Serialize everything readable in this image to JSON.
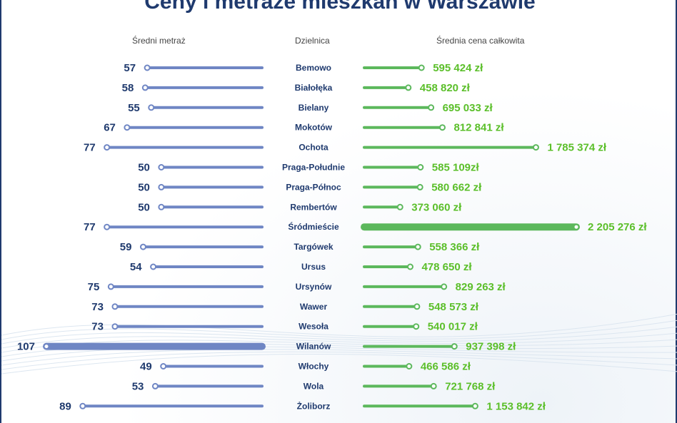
{
  "title": "Ceny i metraże mieszkań w Warszawie",
  "headers": {
    "left": "Średni metraż",
    "middle": "Dzielnica",
    "right": "Średnia cena całkowita"
  },
  "colors": {
    "title": "#1f3a6e",
    "left_bar": "#6f86c4",
    "right_bar": "#5cb85c",
    "right_text": "#5bbf2a"
  },
  "chart_data": {
    "type": "bar",
    "title": "Ceny i metraże mieszkań w Warszawie",
    "categories": [
      "Bemowo",
      "Białołęka",
      "Bielany",
      "Mokotów",
      "Ochota",
      "Praga-Południe",
      "Praga-Północ",
      "Rembertów",
      "Śródmieście",
      "Targówek",
      "Ursus",
      "Ursynów",
      "Wawer",
      "Wesoła",
      "Wilanów",
      "Włochy",
      "Wola",
      "Żoliborz"
    ],
    "series": [
      {
        "name": "Średni metraż",
        "values": [
          57,
          58,
          55,
          67,
          77,
          50,
          50,
          50,
          77,
          59,
          54,
          75,
          73,
          73,
          107,
          49,
          53,
          89
        ],
        "labels": [
          "57",
          "58",
          "55",
          "67",
          "77",
          "50",
          "50",
          "50",
          "77",
          "59",
          "54",
          "75",
          "73",
          "73",
          "107",
          "49",
          "53",
          "89"
        ]
      },
      {
        "name": "Średnia cena całkowita",
        "values": [
          595424,
          458820,
          695033,
          812841,
          1785374,
          585109,
          580662,
          373060,
          2205276,
          558366,
          478650,
          829263,
          548573,
          540017,
          937398,
          466586,
          721768,
          1153842
        ],
        "labels": [
          "595 424 zł",
          "458 820 zł",
          "695 033 zł",
          "812 841 zł",
          "1 785 374 zł",
          "585 109zł",
          "580 662 zł",
          "373 060 zł",
          "2 205 276 zł",
          "558 366 zł",
          "478 650 zł",
          "829 263 zł",
          "548 573 zł",
          "540 017 zł",
          "937 398 zł",
          "466 586 zł",
          "721 768 zł",
          "1 153 842 zł"
        ]
      }
    ]
  }
}
